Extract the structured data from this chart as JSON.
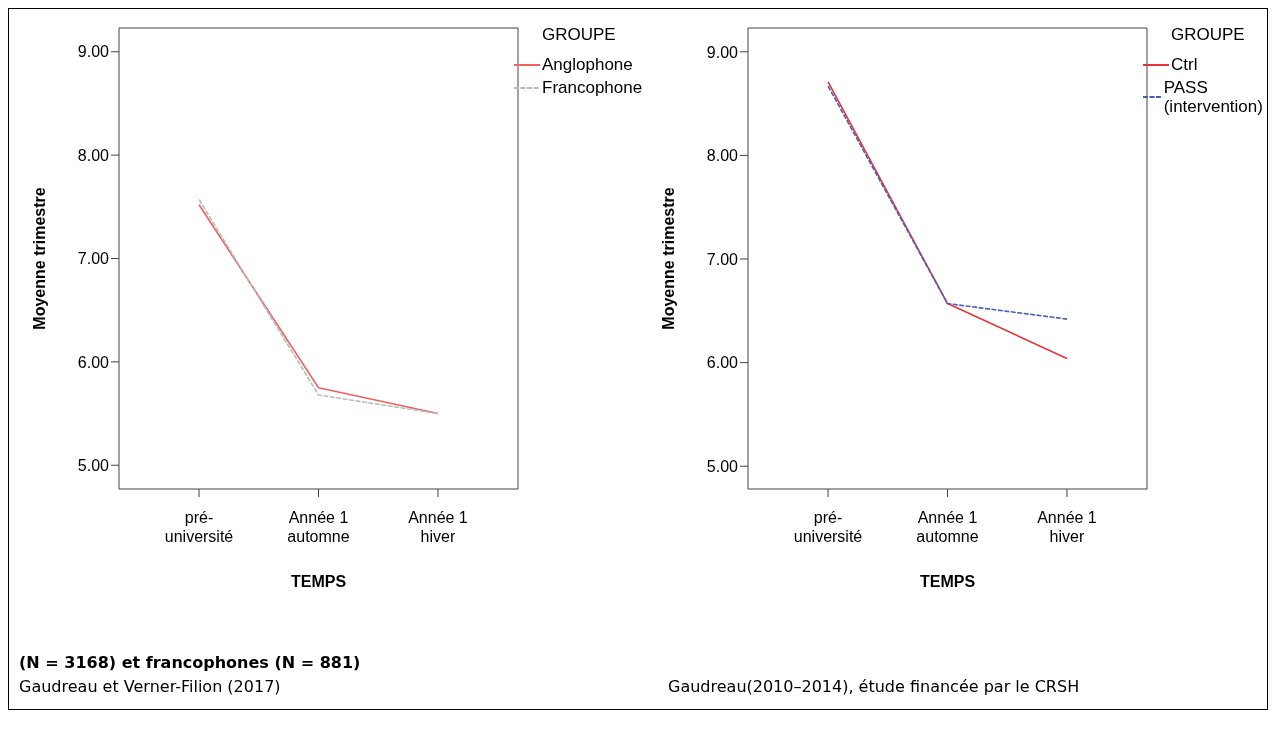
{
  "chart_data": [
    {
      "type": "line",
      "xlabel": "TEMPS",
      "ylabel": "Moyenne trimestre",
      "legend_title": "GROUPE",
      "legend": "top right",
      "grid": false,
      "marker": "none",
      "categories": [
        "pré-université",
        "Année 1 automne",
        "Année 1 hiver"
      ],
      "ylim": [
        4.77,
        9.23
      ],
      "yticks": [
        {
          "value": 5,
          "label": "5.00"
        },
        {
          "value": 6,
          "label": "6.00"
        },
        {
          "value": 7,
          "label": "7.00"
        },
        {
          "value": 8,
          "label": "8.00"
        },
        {
          "value": 9,
          "label": "9.00"
        }
      ],
      "series": [
        {
          "name": "Anglophone",
          "color": "#f06262",
          "line_style": "solid",
          "values": [
            7.52,
            5.75,
            5.5
          ]
        },
        {
          "name": "Francophone",
          "color": "#b4bcbc",
          "line_style": "dashed",
          "values": [
            7.57,
            5.68,
            5.5
          ]
        }
      ],
      "annotations": [
        "(N = 3168) et francophones (N = 881)",
        "Gaudreau et Verner-Filion (2017)"
      ]
    },
    {
      "type": "line",
      "xlabel": "TEMPS",
      "ylabel": "Moyenne trimestre",
      "legend_title": "GROUPE",
      "legend": "top right",
      "grid": false,
      "marker": "none",
      "categories": [
        "pré-université",
        "Année 1 automne",
        "Année 1 hiver"
      ],
      "ylim": [
        4.78,
        9.23
      ],
      "yticks": [
        {
          "value": 5,
          "label": "5.00"
        },
        {
          "value": 6,
          "label": "6.00"
        },
        {
          "value": 7,
          "label": "7.00"
        },
        {
          "value": 8,
          "label": "8.00"
        },
        {
          "value": 9,
          "label": "9.00"
        }
      ],
      "series": [
        {
          "name": "Ctrl",
          "color": "#e8333a",
          "line_style": "solid",
          "values": [
            8.71,
            6.57,
            6.04
          ]
        },
        {
          "name": "PASS (intervention)",
          "color": "#4a60b8",
          "line_style": "dashed",
          "values": [
            8.67,
            6.57,
            6.42
          ]
        }
      ],
      "annotations": [
        "Gaudreau(2010–2014), étude financée par le CRSH"
      ]
    }
  ]
}
